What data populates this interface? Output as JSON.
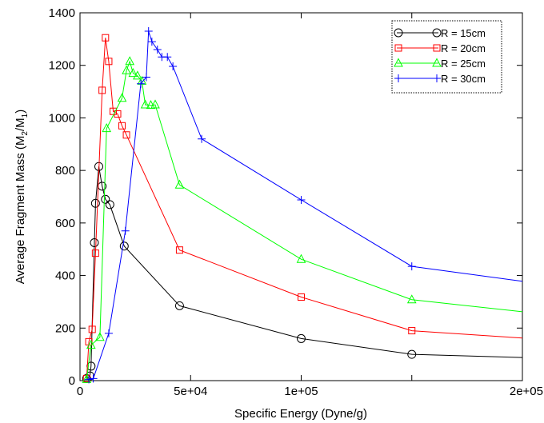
{
  "chart_data": {
    "type": "line",
    "title": "",
    "xlabel": "Specific Energy (Dyne/g)",
    "ylabel": "Average Fragment Mass (M2/M1)",
    "ylabel_parts": [
      "Average Fragment Mass (M",
      "2",
      "/M",
      "1",
      ")"
    ],
    "xlim": [
      0,
      200000
    ],
    "ylim": [
      0,
      1400
    ],
    "xticks": [
      0,
      50000,
      100000,
      150000,
      200000
    ],
    "xtick_labels": [
      "0",
      "5e+04",
      "1e+05",
      "",
      "2e+05"
    ],
    "yticks": [
      0,
      200,
      400,
      600,
      800,
      1000,
      1200,
      1400
    ],
    "ytick_labels": [
      "0",
      "200",
      "400",
      "600",
      "800",
      "1000",
      "1200",
      "1400"
    ],
    "legend_position": "top-right",
    "grid": false,
    "series": [
      {
        "name": "R = 15cm",
        "color": "#000000",
        "marker": "circle",
        "x": [
          3000,
          4500,
          5000,
          6500,
          7000,
          8500,
          10000,
          11500,
          13500,
          20000,
          45000,
          100000,
          150000,
          200000
        ],
        "y": [
          8,
          18,
          55,
          525,
          675,
          815,
          740,
          690,
          670,
          512,
          285,
          160,
          100,
          88
        ],
        "marked": [
          true,
          true,
          true,
          true,
          true,
          true,
          true,
          true,
          true,
          true,
          true,
          true,
          true,
          false
        ]
      },
      {
        "name": "R = 20cm",
        "color": "#ff0000",
        "marker": "square",
        "x": [
          3000,
          4000,
          5500,
          7000,
          10000,
          11500,
          13000,
          15000,
          17000,
          19000,
          21000,
          45000,
          100000,
          150000,
          200000
        ],
        "y": [
          8,
          148,
          195,
          485,
          1105,
          1305,
          1215,
          1025,
          1015,
          970,
          935,
          497,
          318,
          190,
          162
        ],
        "marked": [
          true,
          true,
          true,
          true,
          true,
          true,
          true,
          true,
          true,
          true,
          true,
          true,
          true,
          true,
          false
        ]
      },
      {
        "name": "R = 25cm",
        "color": "#00ff00",
        "marker": "triangle",
        "x": [
          3000,
          5000,
          9000,
          12000,
          19000,
          21000,
          22500,
          24000,
          26000,
          28000,
          29500,
          32000,
          34000,
          45000,
          100000,
          150000,
          200000
        ],
        "y": [
          5,
          135,
          165,
          960,
          1075,
          1180,
          1215,
          1170,
          1160,
          1140,
          1050,
          1048,
          1050,
          745,
          462,
          308,
          262
        ],
        "marked": [
          true,
          true,
          true,
          true,
          true,
          true,
          true,
          true,
          true,
          true,
          true,
          true,
          true,
          true,
          true,
          true,
          false
        ]
      },
      {
        "name": "R = 30cm",
        "color": "#0000ff",
        "marker": "plus",
        "x": [
          4000,
          6000,
          13000,
          20500,
          27500,
          30000,
          31000,
          32500,
          35000,
          37000,
          39500,
          42000,
          55000,
          100000,
          150000,
          200000
        ],
        "y": [
          5,
          8,
          180,
          570,
          1130,
          1155,
          1330,
          1290,
          1260,
          1232,
          1232,
          1196,
          920,
          688,
          435,
          378
        ],
        "marked": [
          true,
          true,
          true,
          true,
          true,
          true,
          true,
          true,
          true,
          true,
          true,
          true,
          true,
          true,
          true,
          false
        ]
      }
    ]
  }
}
